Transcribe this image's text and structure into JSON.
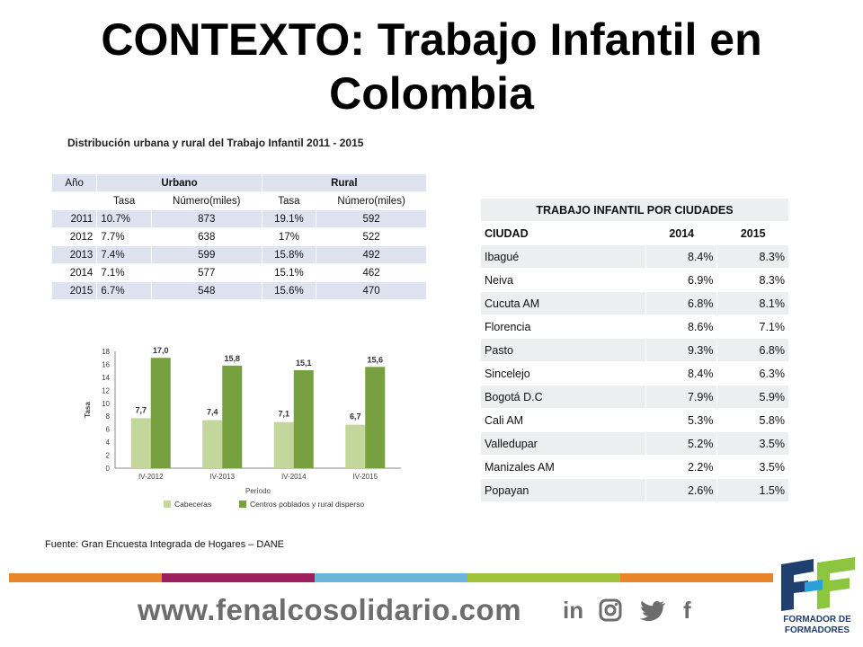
{
  "title": "CONTEXTO: Trabajo Infantil en Colombia",
  "subtitle": "Distribución urbana y rural del Trabajo  Infantil 2011  - 2015",
  "table1": {
    "h_year": "Año",
    "h_urbano": "Urbano",
    "h_rural": "Rural",
    "sub": [
      "Tasa",
      "Número(miles)",
      "Tasa",
      "Número(miles)"
    ],
    "rows": [
      [
        "2011",
        "10.7%",
        "873",
        "19.1%",
        "592"
      ],
      [
        "2012",
        "7.7%",
        "638",
        "17%",
        "522"
      ],
      [
        "2013",
        "7.4%",
        "599",
        "15.8%",
        "492"
      ],
      [
        "2014",
        "7.1%",
        "577",
        "15.1%",
        "462"
      ],
      [
        "2015",
        "6.7%",
        "548",
        "15.6%",
        "470"
      ]
    ]
  },
  "table2": {
    "caption": "TRABAJO INFANTIL POR CIUDADES",
    "headers": [
      "CIUDAD",
      "2014",
      "2015"
    ],
    "rows": [
      [
        "Ibagué",
        "8.4%",
        "8.3%"
      ],
      [
        "Neiva",
        "6.9%",
        "8.3%"
      ],
      [
        "Cucuta AM",
        "6.8%",
        "8.1%"
      ],
      [
        "Florencia",
        "8.6%",
        "7.1%"
      ],
      [
        "Pasto",
        "9.3%",
        "6.8%"
      ],
      [
        "Sincelejo",
        "8.4%",
        "6.3%"
      ],
      [
        "Bogotá D.C",
        "7.9%",
        "5.9%"
      ],
      [
        "Cali AM",
        "5.3%",
        "5.8%"
      ],
      [
        "Valledupar",
        "5.2%",
        "3.5%"
      ],
      [
        "Manizales AM",
        "2.2%",
        "3.5%"
      ],
      [
        "Popayan",
        "2.6%",
        "1.5%"
      ]
    ]
  },
  "chart_data": {
    "type": "bar",
    "categories": [
      "IV-2012",
      "IV-2013",
      "IV-2014",
      "IV-2015"
    ],
    "series": [
      {
        "name": "Cabeceras",
        "values": [
          7.7,
          7.4,
          7.1,
          6.7
        ],
        "labels": [
          "7,7",
          "7,4",
          "7,1",
          "6,7"
        ],
        "color": "#c3d69b"
      },
      {
        "name": "Centros poblados y rural disperso",
        "values": [
          17.0,
          15.8,
          15.1,
          15.6
        ],
        "labels": [
          "17,0",
          "15,8",
          "15,1",
          "15,6"
        ],
        "color": "#77a140"
      }
    ],
    "xlabel": "Período",
    "ylabel": "Tasa",
    "ylim": [
      0,
      18
    ],
    "yticks": [
      "0",
      "2",
      "4",
      "6",
      "8",
      "10",
      "12",
      "14",
      "16",
      "18"
    ],
    "legend_position": "bottom"
  },
  "source": "Fuente: Gran Encuesta Integrada de Hogares – DANE",
  "footer": {
    "url": "www.fenalcosolidario.com",
    "social": [
      "in",
      "f"
    ],
    "logo_text": "FORMADOR DE FORMADORES",
    "bar_colors": [
      "#e8842a",
      "#9c1f5e",
      "#6cb4d8",
      "#9fc43a",
      "#e8842a"
    ]
  }
}
